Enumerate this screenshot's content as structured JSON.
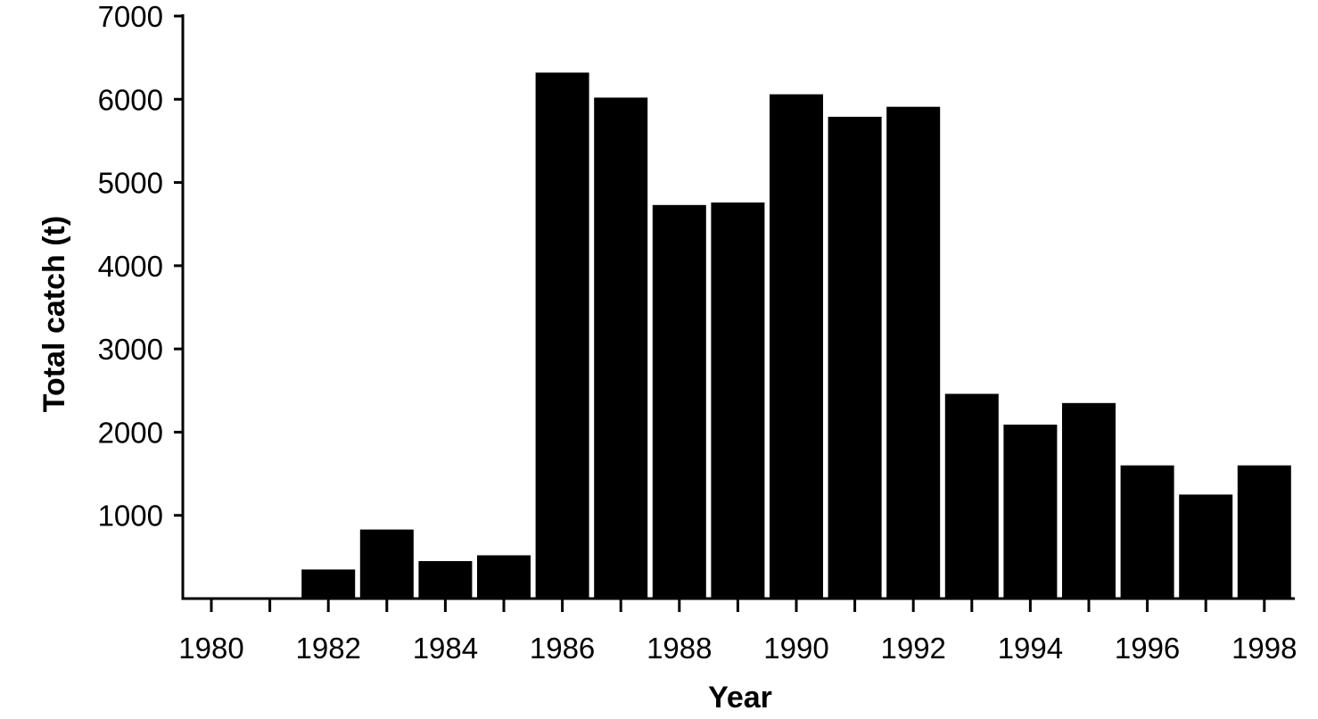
{
  "chart_data": {
    "type": "bar",
    "categories": [
      "1980",
      "1981",
      "1982",
      "1983",
      "1984",
      "1985",
      "1986",
      "1987",
      "1988",
      "1989",
      "1990",
      "1991",
      "1992",
      "1993",
      "1994",
      "1995",
      "1996",
      "1997",
      "1998"
    ],
    "values": [
      0,
      0,
      350,
      830,
      450,
      520,
      6320,
      6020,
      4730,
      4760,
      6060,
      5790,
      5910,
      2460,
      2090,
      2350,
      1600,
      1250,
      1600
    ],
    "xlabel": "Year",
    "ylabel": "Total catch (t)",
    "ylim": [
      0,
      7000
    ],
    "y_ticks": [
      1000,
      2000,
      3000,
      4000,
      5000,
      6000,
      7000
    ],
    "x_tick_labels": [
      "1980",
      "1982",
      "1984",
      "1986",
      "1988",
      "1990",
      "1992",
      "1994",
      "1996",
      "1998"
    ],
    "bar_color": "#000000",
    "grid": false,
    "legend": "none"
  }
}
